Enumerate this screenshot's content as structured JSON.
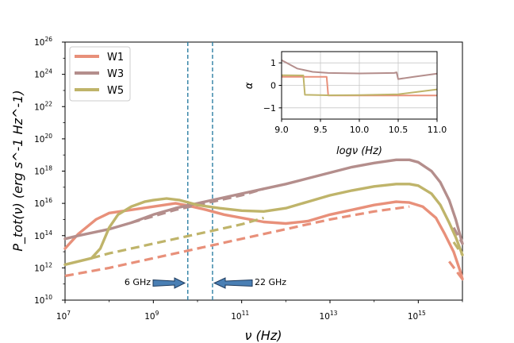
{
  "chart_data": {
    "type": "line",
    "xlabel": "ν (Hz)",
    "ylabel": "P_tot(ν) (erg s^-1 Hz^-1)",
    "x_scale": "log",
    "y_scale": "log",
    "xlim_log10": [
      7,
      16
    ],
    "ylim_log10": [
      10,
      26
    ],
    "x_ticks": [
      {
        "base": "10",
        "exp": "7",
        "value": 7
      },
      {
        "base": "10",
        "exp": "9",
        "value": 9
      },
      {
        "base": "10",
        "exp": "11",
        "value": 11
      },
      {
        "base": "10",
        "exp": "13",
        "value": 13
      },
      {
        "base": "10",
        "exp": "15",
        "value": 15
      }
    ],
    "y_ticks": [
      {
        "base": "10",
        "exp": "10",
        "value": 10
      },
      {
        "base": "10",
        "exp": "12",
        "value": 12
      },
      {
        "base": "10",
        "exp": "14",
        "value": 14
      },
      {
        "base": "10",
        "exp": "16",
        "value": 16
      },
      {
        "base": "10",
        "exp": "18",
        "value": 18
      },
      {
        "base": "10",
        "exp": "20",
        "value": 20
      },
      {
        "base": "10",
        "exp": "22",
        "value": 22
      },
      {
        "base": "10",
        "exp": "24",
        "value": 24
      },
      {
        "base": "10",
        "exp": "26",
        "value": 26
      }
    ],
    "vertical_lines_log10": [
      9.78,
      10.34
    ],
    "annotations": [
      {
        "label": "6 GHz",
        "x_log10": 9.78,
        "direction": "left"
      },
      {
        "label": "22 GHz",
        "x_log10": 10.34,
        "direction": "right"
      }
    ],
    "series": [
      {
        "name": "W1",
        "color": "#e8907a",
        "total_log10": [
          [
            7,
            13.2
          ],
          [
            7.3,
            14.1
          ],
          [
            7.7,
            15.0
          ],
          [
            8.0,
            15.4
          ],
          [
            8.5,
            15.6
          ],
          [
            9,
            15.8
          ],
          [
            9.5,
            16.0
          ],
          [
            9.8,
            15.85
          ],
          [
            10.2,
            15.6
          ],
          [
            10.6,
            15.3
          ],
          [
            11,
            15.1
          ],
          [
            11.5,
            14.85
          ],
          [
            12,
            14.75
          ],
          [
            12.5,
            14.9
          ],
          [
            13,
            15.3
          ],
          [
            13.5,
            15.6
          ],
          [
            14,
            15.9
          ],
          [
            14.5,
            16.1
          ],
          [
            14.8,
            16.05
          ],
          [
            15.1,
            15.8
          ],
          [
            15.4,
            15.1
          ],
          [
            15.6,
            14.1
          ],
          [
            15.8,
            13.0
          ],
          [
            15.95,
            11.8
          ],
          [
            16.0,
            11.3
          ]
        ],
        "component_log10": [
          [
            7,
            11.5
          ],
          [
            8,
            12.0
          ],
          [
            9,
            12.6
          ],
          [
            10,
            13.2
          ],
          [
            11,
            13.8
          ],
          [
            12,
            14.4
          ],
          [
            13,
            15.0
          ],
          [
            14,
            15.5
          ],
          [
            14.8,
            15.8
          ]
        ],
        "component2_log10": [
          [
            15.7,
            12.4
          ],
          [
            16.0,
            11.3
          ]
        ]
      },
      {
        "name": "W3",
        "color": "#b48e8c",
        "total_log10": [
          [
            7,
            13.8
          ],
          [
            7.3,
            14.0
          ],
          [
            8,
            14.4
          ],
          [
            8.5,
            14.8
          ],
          [
            9,
            15.3
          ],
          [
            9.5,
            15.7
          ],
          [
            10,
            16.0
          ],
          [
            10.5,
            16.3
          ],
          [
            11,
            16.6
          ],
          [
            11.5,
            16.9
          ],
          [
            12,
            17.2
          ],
          [
            12.5,
            17.55
          ],
          [
            13,
            17.9
          ],
          [
            13.5,
            18.25
          ],
          [
            14,
            18.5
          ],
          [
            14.5,
            18.7
          ],
          [
            14.8,
            18.7
          ],
          [
            15,
            18.55
          ],
          [
            15.3,
            18.0
          ],
          [
            15.5,
            17.3
          ],
          [
            15.7,
            16.2
          ],
          [
            15.85,
            15.0
          ],
          [
            16.0,
            13.5
          ]
        ],
        "component_log10": [
          [
            8.5,
            14.8
          ],
          [
            9,
            15.2
          ],
          [
            9.5,
            15.6
          ],
          [
            10,
            15.9
          ],
          [
            10.5,
            16.2
          ],
          [
            11,
            16.5
          ],
          [
            11.5,
            16.9
          ]
        ],
        "component2_log10": [
          [
            15.8,
            14.5
          ],
          [
            16.0,
            13.5
          ]
        ]
      },
      {
        "name": "W5",
        "color": "#bfb46a",
        "total_log10": [
          [
            7,
            12.2
          ],
          [
            7.6,
            12.6
          ],
          [
            7.8,
            13.2
          ],
          [
            8.0,
            14.5
          ],
          [
            8.2,
            15.3
          ],
          [
            8.5,
            15.8
          ],
          [
            8.8,
            16.1
          ],
          [
            9.0,
            16.2
          ],
          [
            9.3,
            16.3
          ],
          [
            9.6,
            16.2
          ],
          [
            10,
            15.9
          ],
          [
            10.5,
            15.7
          ],
          [
            11,
            15.55
          ],
          [
            11.5,
            15.5
          ],
          [
            12,
            15.7
          ],
          [
            12.5,
            16.1
          ],
          [
            13,
            16.5
          ],
          [
            13.5,
            16.8
          ],
          [
            14,
            17.05
          ],
          [
            14.5,
            17.2
          ],
          [
            14.8,
            17.2
          ],
          [
            15,
            17.1
          ],
          [
            15.3,
            16.6
          ],
          [
            15.5,
            15.9
          ],
          [
            15.7,
            14.8
          ],
          [
            15.85,
            13.9
          ],
          [
            16.0,
            12.8
          ]
        ],
        "component_log10": [
          [
            7.6,
            12.6
          ],
          [
            8,
            12.9
          ],
          [
            9,
            13.5
          ],
          [
            10,
            14.1
          ],
          [
            11,
            14.7
          ],
          [
            11.5,
            15.1
          ]
        ],
        "component2_log10": [
          [
            15.8,
            13.6
          ],
          [
            16.0,
            12.8
          ]
        ]
      }
    ],
    "legend": {
      "location": "upper-left",
      "entries": [
        "W1",
        "W3",
        "W5"
      ]
    },
    "inset": {
      "type": "line",
      "xlabel": "logν (Hz)",
      "ylabel": "α",
      "xlim": [
        9.0,
        11.0
      ],
      "ylim": [
        -1.5,
        1.5
      ],
      "x_ticks": [
        "9.0",
        "9.5",
        "10.0",
        "10.5",
        "11.0"
      ],
      "y_ticks": [
        "1",
        "0",
        "−1"
      ],
      "grid": true,
      "series": [
        {
          "name": "W1",
          "color": "#e8907a",
          "points": [
            [
              9.0,
              0.38
            ],
            [
              9.58,
              0.38
            ],
            [
              9.6,
              -0.45
            ],
            [
              10,
              -0.45
            ],
            [
              10.5,
              -0.45
            ],
            [
              11.0,
              -0.45
            ]
          ]
        },
        {
          "name": "W3",
          "color": "#b48e8c",
          "points": [
            [
              9.0,
              1.12
            ],
            [
              9.2,
              0.75
            ],
            [
              9.4,
              0.6
            ],
            [
              9.6,
              0.55
            ],
            [
              10,
              0.53
            ],
            [
              10.45,
              0.55
            ],
            [
              10.48,
              0.58
            ],
            [
              10.5,
              0.28
            ],
            [
              10.7,
              0.38
            ],
            [
              11.0,
              0.52
            ]
          ]
        },
        {
          "name": "W5",
          "color": "#bfb46a",
          "points": [
            [
              9.0,
              0.45
            ],
            [
              9.28,
              0.44
            ],
            [
              9.3,
              -0.42
            ],
            [
              9.6,
              -0.44
            ],
            [
              10,
              -0.43
            ],
            [
              10.5,
              -0.4
            ],
            [
              11.0,
              -0.18
            ]
          ]
        }
      ]
    }
  }
}
